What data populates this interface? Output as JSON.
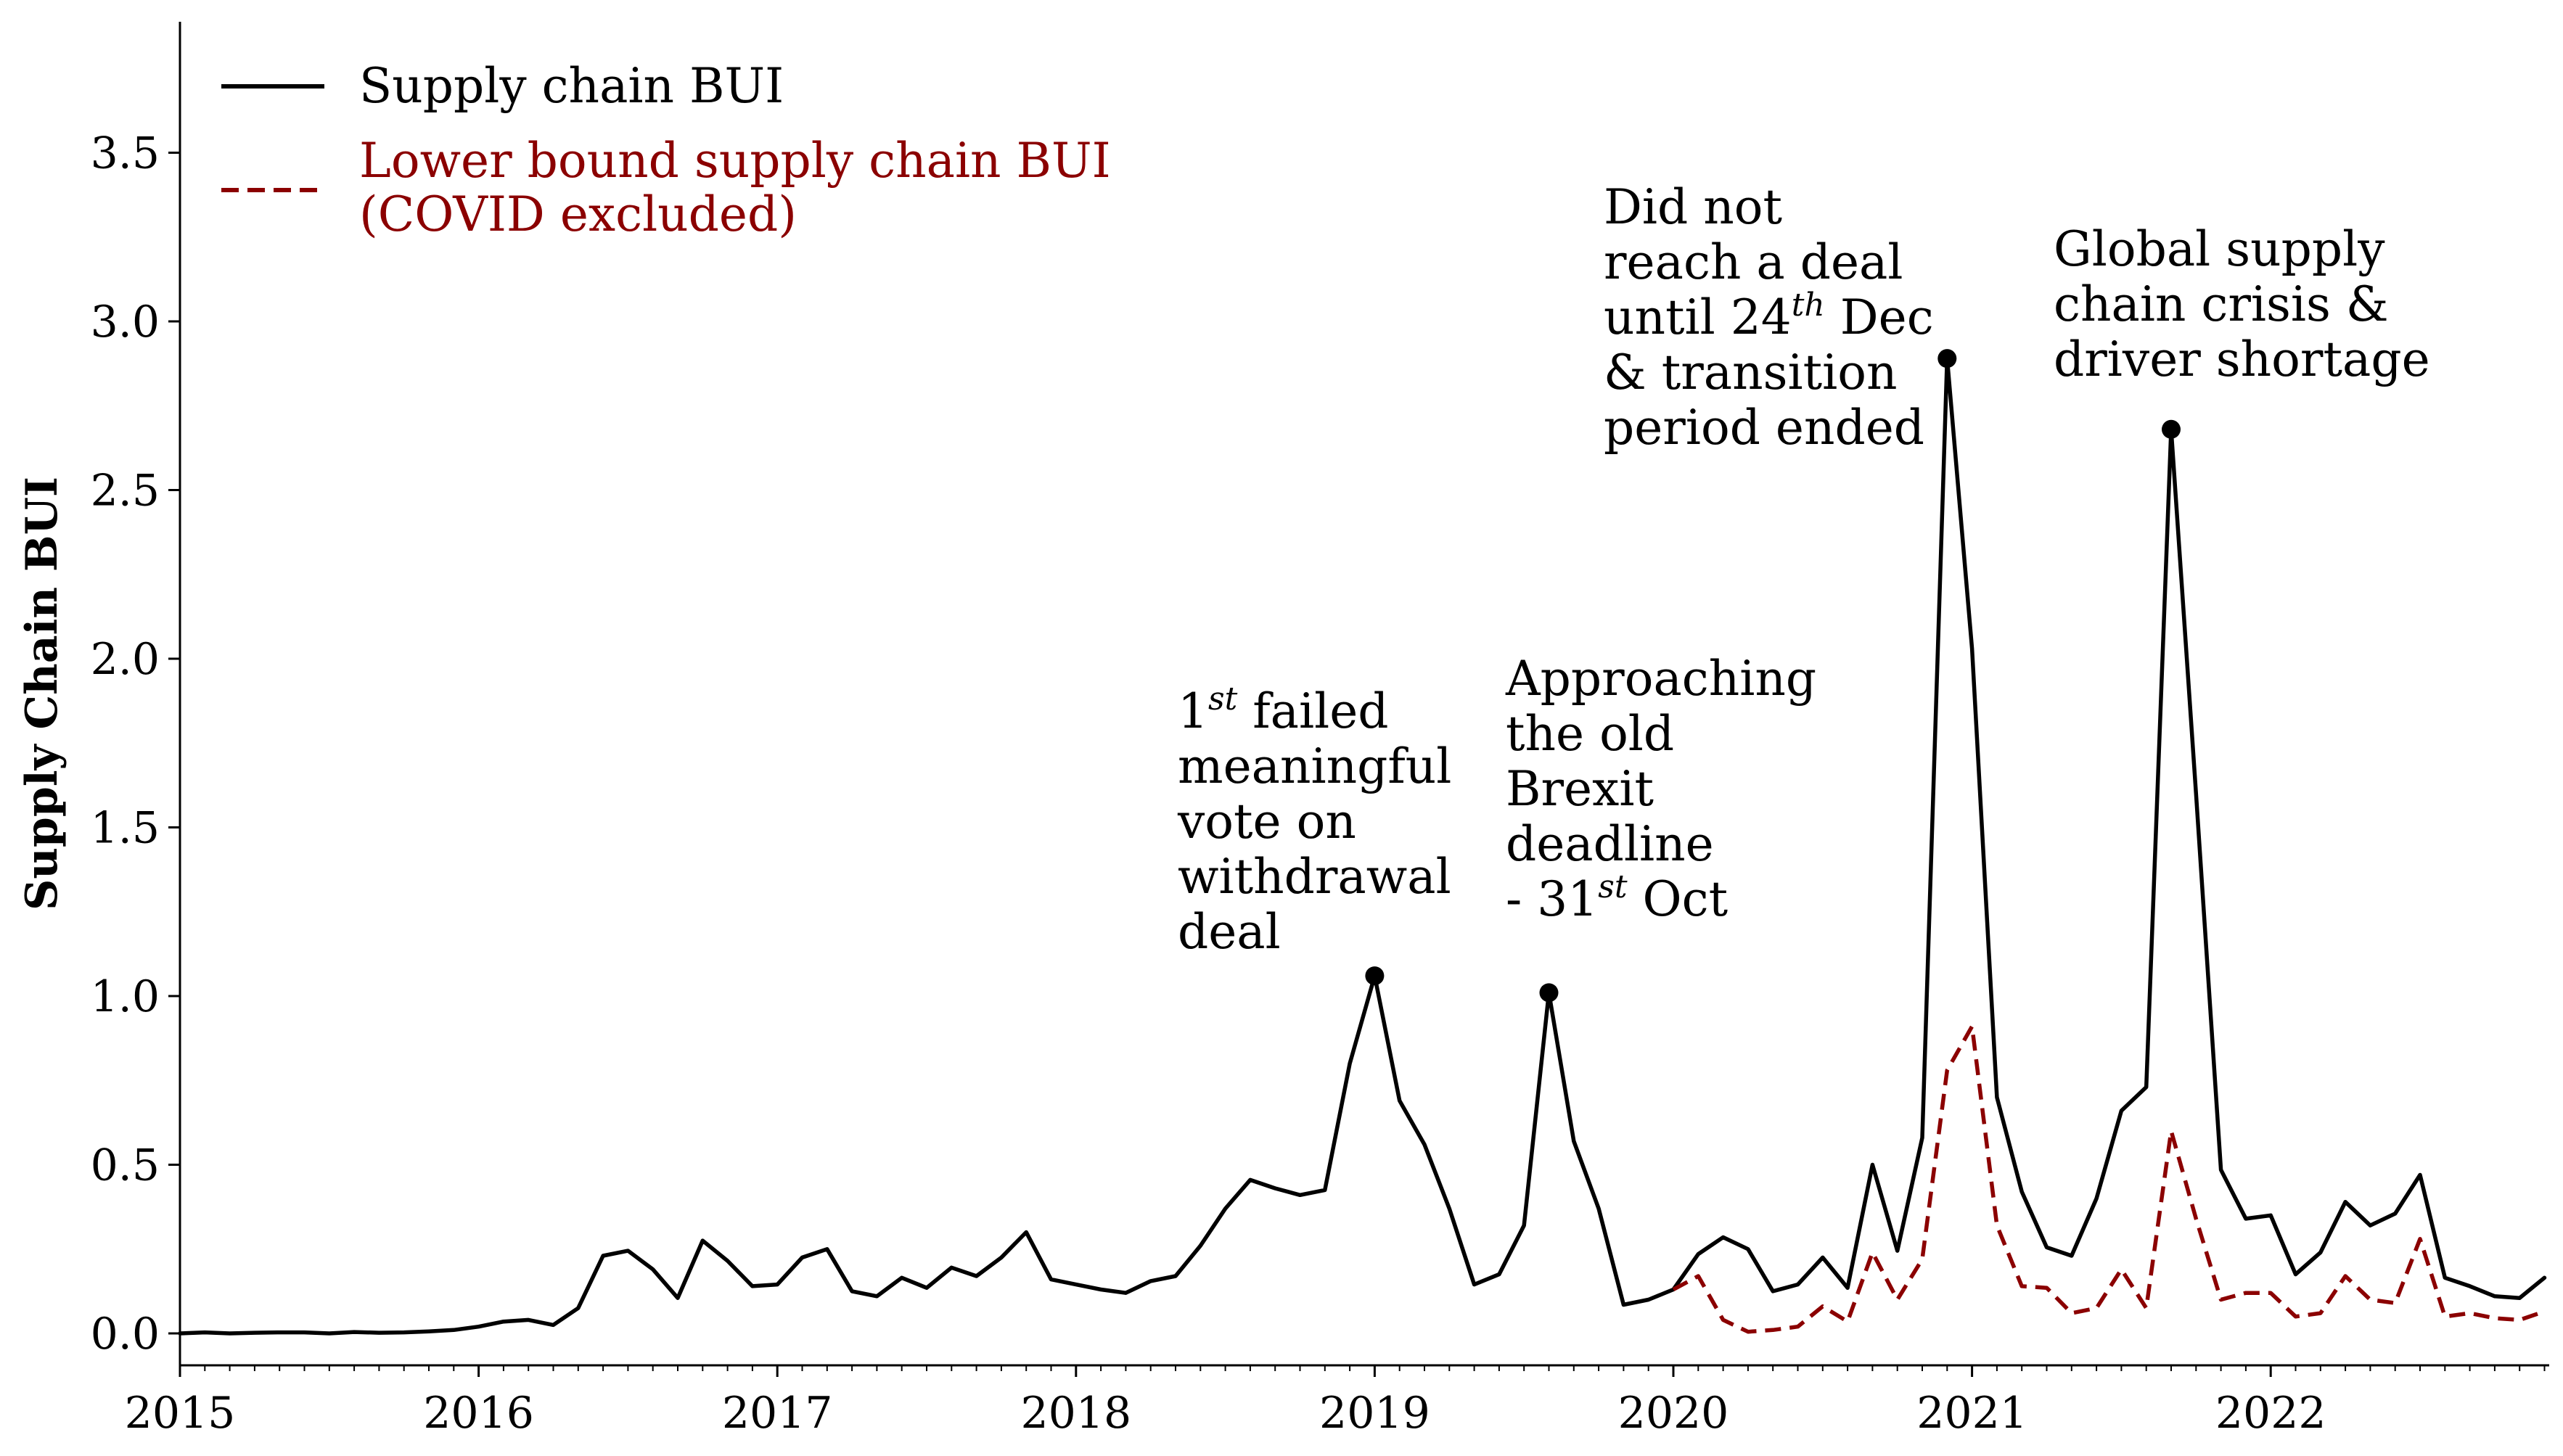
{
  "chart_data": {
    "type": "line",
    "title": "",
    "xlabel": "",
    "ylabel": "Supply Chain BUI",
    "xlim": [
      "2015-01",
      "2022-12"
    ],
    "ylim": [
      -0.1,
      3.9
    ],
    "x_tick_labels": [
      "2015",
      "2016",
      "2017",
      "2018",
      "2019",
      "2020",
      "2021",
      "2022"
    ],
    "y_tick_labels": [
      "0.0",
      "0.5",
      "1.0",
      "1.5",
      "2.0",
      "2.5",
      "3.0",
      "3.5"
    ],
    "grid": false,
    "legend_position": "top-left",
    "series": [
      {
        "name": "Supply chain BUI",
        "color": "#000000",
        "style": "solid",
        "start": "2015-01",
        "values": [
          0.0,
          0.003,
          0.0,
          0.002,
          0.003,
          0.003,
          0.0,
          0.004,
          0.002,
          0.003,
          0.006,
          0.01,
          0.02,
          0.035,
          0.04,
          0.025,
          0.075,
          0.23,
          0.245,
          0.19,
          0.105,
          0.275,
          0.215,
          0.14,
          0.145,
          0.225,
          0.25,
          0.125,
          0.11,
          0.165,
          0.135,
          0.195,
          0.17,
          0.225,
          0.3,
          0.16,
          0.145,
          0.13,
          0.12,
          0.155,
          0.17,
          0.26,
          0.37,
          0.455,
          0.43,
          0.41,
          0.425,
          0.8,
          1.06,
          0.69,
          0.56,
          0.37,
          0.145,
          0.175,
          0.32,
          1.01,
          0.57,
          0.37,
          0.085,
          0.1,
          0.13,
          0.235,
          0.285,
          0.25,
          0.125,
          0.145,
          0.225,
          0.135,
          0.5,
          0.245,
          0.58,
          2.89,
          2.03,
          0.7,
          0.42,
          0.255,
          0.23,
          0.4,
          0.66,
          0.73,
          2.68,
          1.6,
          0.485,
          0.34,
          0.35,
          0.175,
          0.24,
          0.39,
          0.32,
          0.355,
          0.47,
          0.165,
          0.14,
          0.11,
          0.105,
          0.165
        ]
      },
      {
        "name": "Lower bound supply chain BUI\n(COVID excluded)",
        "color": "#8b0000",
        "style": "dashed",
        "start": "2020-01",
        "values": [
          0.13,
          0.17,
          0.04,
          0.005,
          0.01,
          0.02,
          0.08,
          0.035,
          0.24,
          0.1,
          0.22,
          0.78,
          0.91,
          0.32,
          0.14,
          0.135,
          0.06,
          0.075,
          0.19,
          0.075,
          0.6,
          0.34,
          0.1,
          0.12,
          0.12,
          0.05,
          0.06,
          0.17,
          0.1,
          0.09,
          0.28,
          0.05,
          0.06,
          0.045,
          0.04,
          0.065
        ]
      }
    ],
    "markers": [
      {
        "label": "1st failed meaningful vote on withdrawal deal",
        "x": "2019-01",
        "y": 1.06
      },
      {
        "label": "Approaching the old Brexit deadline - 31st Oct",
        "x": "2019-08",
        "y": 1.01
      },
      {
        "label": "Did not reach a deal until 24th Dec & transition period ended",
        "x": "2020-12",
        "y": 2.89
      },
      {
        "label": "Global supply chain crisis & driver shortage",
        "x": "2021-09",
        "y": 2.68
      }
    ]
  },
  "legend": {
    "solid_label": "Supply chain BUI",
    "dashed_line1": "Lower bound supply chain BUI",
    "dashed_line2": "(COVID excluded)"
  },
  "annotations": [
    {
      "id": "failed-vote",
      "lines": [
        [
          {
            "t": "1"
          },
          {
            "t": "st",
            "sup": true
          },
          {
            "t": " failed"
          }
        ],
        [
          {
            "t": "meaningful"
          }
        ],
        [
          {
            "t": "vote on"
          }
        ],
        [
          {
            "t": "withdrawal"
          }
        ],
        [
          {
            "t": "deal"
          }
        ]
      ]
    },
    {
      "id": "brexit-deadline",
      "lines": [
        [
          {
            "t": "Approaching"
          }
        ],
        [
          {
            "t": "the old"
          }
        ],
        [
          {
            "t": "Brexit"
          }
        ],
        [
          {
            "t": "deadline"
          }
        ],
        [
          {
            "t": "- 31"
          },
          {
            "t": "st",
            "sup": true
          },
          {
            "t": " Oct"
          }
        ]
      ]
    },
    {
      "id": "no-deal",
      "lines": [
        [
          {
            "t": "Did not"
          }
        ],
        [
          {
            "t": "reach a deal"
          }
        ],
        [
          {
            "t": "until 24"
          },
          {
            "t": "th",
            "sup": true
          },
          {
            "t": " Dec"
          }
        ],
        [
          {
            "t": "& transition"
          }
        ],
        [
          {
            "t": "period ended"
          }
        ]
      ]
    },
    {
      "id": "supply-crisis",
      "lines": [
        [
          {
            "t": "Global supply"
          }
        ],
        [
          {
            "t": "chain crisis &"
          }
        ],
        [
          {
            "t": "driver shortage"
          }
        ]
      ]
    }
  ]
}
